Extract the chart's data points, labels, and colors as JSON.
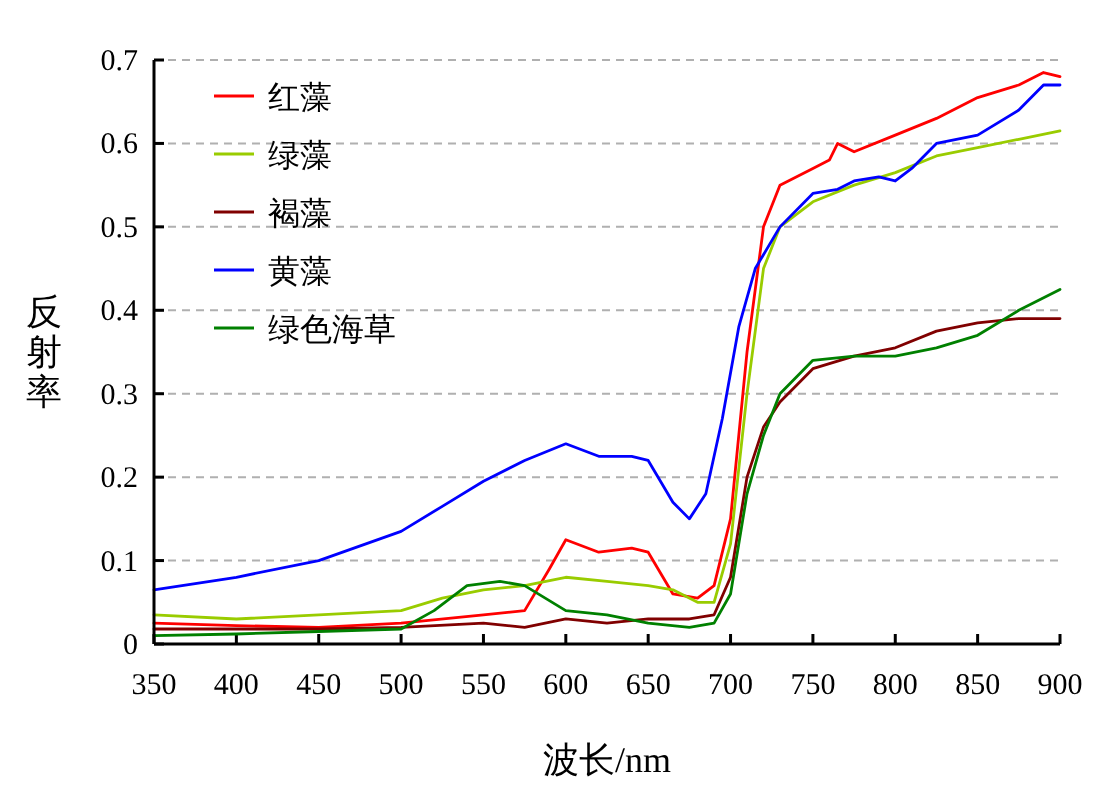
{
  "chart_data": {
    "type": "line",
    "xlabel": "波长/nm",
    "ylabel": "反射率",
    "xlim": [
      350,
      900
    ],
    "xticks": [
      350,
      400,
      450,
      500,
      550,
      600,
      650,
      700,
      750,
      800,
      850,
      900
    ],
    "ylim": [
      0,
      0.7
    ],
    "yticks": [
      0,
      0.1,
      0.2,
      0.3,
      0.4,
      0.5,
      0.6,
      0.7
    ],
    "grid": "y",
    "legend": "top left",
    "marker": "none",
    "line_style": "solid",
    "series": [
      {
        "name": "红藻",
        "color": "#ff0000",
        "x": [
          350,
          400,
          450,
          500,
          550,
          575,
          590,
          600,
          620,
          640,
          650,
          665,
          680,
          690,
          700,
          710,
          720,
          730,
          750,
          760,
          765,
          775,
          800,
          825,
          850,
          875,
          890,
          900
        ],
        "values": [
          0.025,
          0.022,
          0.02,
          0.025,
          0.035,
          0.04,
          0.09,
          0.125,
          0.11,
          0.115,
          0.11,
          0.06,
          0.055,
          0.07,
          0.15,
          0.35,
          0.5,
          0.55,
          0.57,
          0.58,
          0.6,
          0.59,
          0.61,
          0.63,
          0.655,
          0.67,
          0.685,
          0.68
        ]
      },
      {
        "name": "绿藻",
        "color": "#99cc00",
        "x": [
          350,
          400,
          450,
          500,
          525,
          550,
          575,
          600,
          625,
          650,
          665,
          680,
          690,
          700,
          710,
          720,
          730,
          750,
          775,
          800,
          825,
          850,
          875,
          900
        ],
        "values": [
          0.035,
          0.03,
          0.035,
          0.04,
          0.055,
          0.065,
          0.07,
          0.08,
          0.075,
          0.07,
          0.065,
          0.05,
          0.05,
          0.12,
          0.3,
          0.45,
          0.5,
          0.53,
          0.55,
          0.565,
          0.585,
          0.595,
          0.605,
          0.615
        ]
      },
      {
        "name": "褐藻",
        "color": "#800000",
        "x": [
          350,
          400,
          450,
          500,
          550,
          575,
          600,
          625,
          650,
          675,
          690,
          700,
          710,
          720,
          730,
          750,
          775,
          800,
          825,
          850,
          875,
          900
        ],
        "values": [
          0.018,
          0.018,
          0.018,
          0.02,
          0.025,
          0.02,
          0.03,
          0.025,
          0.03,
          0.03,
          0.035,
          0.08,
          0.2,
          0.26,
          0.29,
          0.33,
          0.345,
          0.355,
          0.375,
          0.385,
          0.39,
          0.39
        ]
      },
      {
        "name": "黄藻",
        "color": "#0000ff",
        "x": [
          350,
          400,
          450,
          500,
          525,
          550,
          575,
          600,
          620,
          640,
          650,
          665,
          675,
          685,
          695,
          705,
          715,
          730,
          750,
          765,
          775,
          790,
          800,
          810,
          825,
          850,
          875,
          890,
          900
        ],
        "values": [
          0.065,
          0.08,
          0.1,
          0.135,
          0.165,
          0.195,
          0.22,
          0.24,
          0.225,
          0.225,
          0.22,
          0.17,
          0.15,
          0.18,
          0.27,
          0.38,
          0.45,
          0.5,
          0.54,
          0.545,
          0.555,
          0.56,
          0.555,
          0.57,
          0.6,
          0.61,
          0.64,
          0.67,
          0.67
        ]
      },
      {
        "name": "绿色海草",
        "color": "#008000",
        "x": [
          350,
          400,
          450,
          500,
          520,
          540,
          560,
          575,
          600,
          625,
          650,
          675,
          690,
          700,
          710,
          720,
          730,
          750,
          775,
          800,
          825,
          850,
          875,
          900
        ],
        "values": [
          0.01,
          0.012,
          0.015,
          0.018,
          0.04,
          0.07,
          0.075,
          0.07,
          0.04,
          0.035,
          0.025,
          0.02,
          0.025,
          0.06,
          0.18,
          0.25,
          0.3,
          0.34,
          0.345,
          0.345,
          0.355,
          0.37,
          0.4,
          0.425
        ]
      }
    ]
  }
}
